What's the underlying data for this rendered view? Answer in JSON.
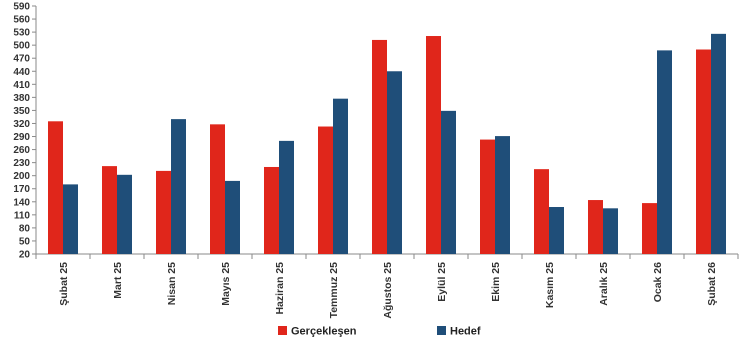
{
  "chart_data": {
    "type": "bar",
    "categories": [
      "Şubat 25",
      "Mart 25",
      "Nisan 25",
      "Mayıs 25",
      "Haziran 25",
      "Temmuz 25",
      "Ağustos 25",
      "Eylül 25",
      "Ekim 25",
      "Kasım 25",
      "Aralık 25",
      "Ocak 26",
      "Şubat 26"
    ],
    "series": [
      {
        "name": "Gerçekleşen",
        "color": "#e0261b",
        "values": [
          325,
          222,
          211,
          318,
          220,
          313,
          512,
          521,
          283,
          215,
          144,
          137,
          490
        ]
      },
      {
        "name": "Hedef",
        "color": "#1f4e79",
        "values": [
          180,
          202,
          330,
          188,
          280,
          377,
          440,
          349,
          291,
          128,
          125,
          488,
          526
        ]
      }
    ],
    "y_ticks": [
      20,
      50,
      80,
      110,
      140,
      170,
      200,
      230,
      260,
      290,
      320,
      350,
      380,
      410,
      440,
      470,
      500,
      530,
      560,
      590
    ],
    "ylim": [
      20,
      590
    ],
    "title": "",
    "xlabel": "",
    "ylabel": "",
    "grid": false,
    "legend_position": "bottom"
  }
}
